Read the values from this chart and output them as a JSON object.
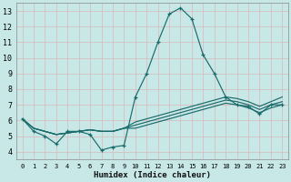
{
  "xlabel": "Humidex (Indice chaleur)",
  "xlim": [
    -0.5,
    23.5
  ],
  "ylim": [
    3.5,
    13.5
  ],
  "xticks": [
    0,
    1,
    2,
    3,
    4,
    5,
    6,
    7,
    8,
    9,
    10,
    11,
    12,
    13,
    14,
    15,
    16,
    17,
    18,
    19,
    20,
    21,
    22,
    23
  ],
  "yticks": [
    4,
    5,
    6,
    7,
    8,
    9,
    10,
    11,
    12,
    13
  ],
  "background_color": "#c8e8e8",
  "grid_color_major": "#aaaaaa",
  "grid_color_minor": "#ccdddd",
  "line_color": "#1a6b6b",
  "lines": [
    {
      "x": [
        0,
        1,
        2,
        3,
        4,
        5,
        6,
        7,
        8,
        9,
        10,
        11,
        12,
        13,
        14,
        15,
        16,
        17,
        18,
        19,
        20,
        21,
        22,
        23
      ],
      "y": [
        6.1,
        5.3,
        5.0,
        4.5,
        5.3,
        5.3,
        5.1,
        4.1,
        4.3,
        4.4,
        7.5,
        9.0,
        11.0,
        12.8,
        13.2,
        12.5,
        10.2,
        9.0,
        7.5,
        7.0,
        6.9,
        6.4,
        7.0,
        7.0
      ],
      "marker": true
    },
    {
      "x": [
        0,
        1,
        2,
        3,
        4,
        5,
        6,
        7,
        8,
        9,
        10,
        11,
        12,
        13,
        14,
        15,
        16,
        17,
        18,
        19,
        20,
        21,
        22,
        23
      ],
      "y": [
        6.1,
        5.5,
        5.3,
        5.1,
        5.2,
        5.3,
        5.4,
        5.3,
        5.3,
        5.5,
        5.9,
        6.1,
        6.3,
        6.5,
        6.7,
        6.9,
        7.1,
        7.3,
        7.5,
        7.4,
        7.2,
        6.9,
        7.2,
        7.5
      ],
      "marker": false
    },
    {
      "x": [
        0,
        1,
        2,
        3,
        4,
        5,
        6,
        7,
        8,
        9,
        10,
        11,
        12,
        13,
        14,
        15,
        16,
        17,
        18,
        19,
        20,
        21,
        22,
        23
      ],
      "y": [
        6.1,
        5.5,
        5.3,
        5.1,
        5.2,
        5.3,
        5.4,
        5.3,
        5.3,
        5.5,
        5.7,
        5.9,
        6.1,
        6.3,
        6.5,
        6.7,
        6.9,
        7.1,
        7.3,
        7.2,
        7.0,
        6.7,
        7.0,
        7.2
      ],
      "marker": false
    },
    {
      "x": [
        0,
        1,
        2,
        3,
        4,
        5,
        6,
        7,
        8,
        9,
        10,
        11,
        12,
        13,
        14,
        15,
        16,
        17,
        18,
        19,
        20,
        21,
        22,
        23
      ],
      "y": [
        6.1,
        5.5,
        5.3,
        5.1,
        5.2,
        5.3,
        5.4,
        5.3,
        5.3,
        5.5,
        5.5,
        5.7,
        5.9,
        6.1,
        6.3,
        6.5,
        6.7,
        6.9,
        7.1,
        7.0,
        6.8,
        6.5,
        6.8,
        7.0
      ],
      "marker": false
    }
  ],
  "xlabel_fontsize": 6.5,
  "xlabel_fontweight": "bold",
  "tick_fontsize_x": 5.0,
  "tick_fontsize_y": 6.0,
  "linewidth": 0.85,
  "markersize": 3.5,
  "markeredgewidth": 0.9
}
